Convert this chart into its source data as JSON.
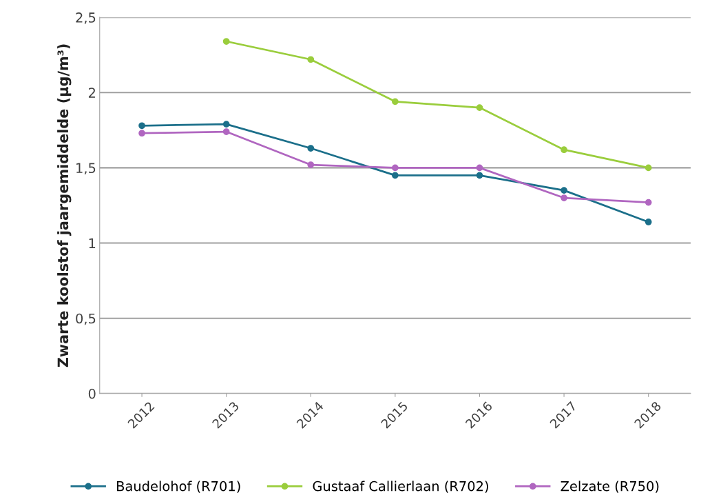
{
  "chart_data": {
    "type": "line",
    "ylabel": "Zwarte koolstof jaargemiddelde (µg/m³)",
    "categories": [
      "2012",
      "2013",
      "2014",
      "2015",
      "2016",
      "2017",
      "2018"
    ],
    "series": [
      {
        "name": "Baudelohof (R701)",
        "color": "#1b6f8a",
        "values": [
          1.78,
          1.79,
          1.63,
          1.45,
          1.45,
          1.35,
          1.14
        ]
      },
      {
        "name": "Gustaaf Callierlaan (R702)",
        "color": "#9acd3c",
        "values": [
          null,
          2.34,
          2.22,
          1.94,
          1.9,
          1.62,
          1.5
        ]
      },
      {
        "name": "Zelzate (R750)",
        "color": "#b066c0",
        "values": [
          1.73,
          1.74,
          1.52,
          1.5,
          1.5,
          1.3,
          1.27
        ]
      }
    ],
    "ylim": [
      0,
      2.5
    ],
    "yticks": [
      0,
      {
        "value": 0.5,
        "label": "0,5"
      },
      1,
      {
        "value": 1.5,
        "label": "1,5"
      },
      2,
      {
        "value": 2.5,
        "label": "2,5"
      }
    ],
    "grid": "y",
    "legend": "bottom",
    "marker": "circle",
    "line_style": "solid"
  }
}
